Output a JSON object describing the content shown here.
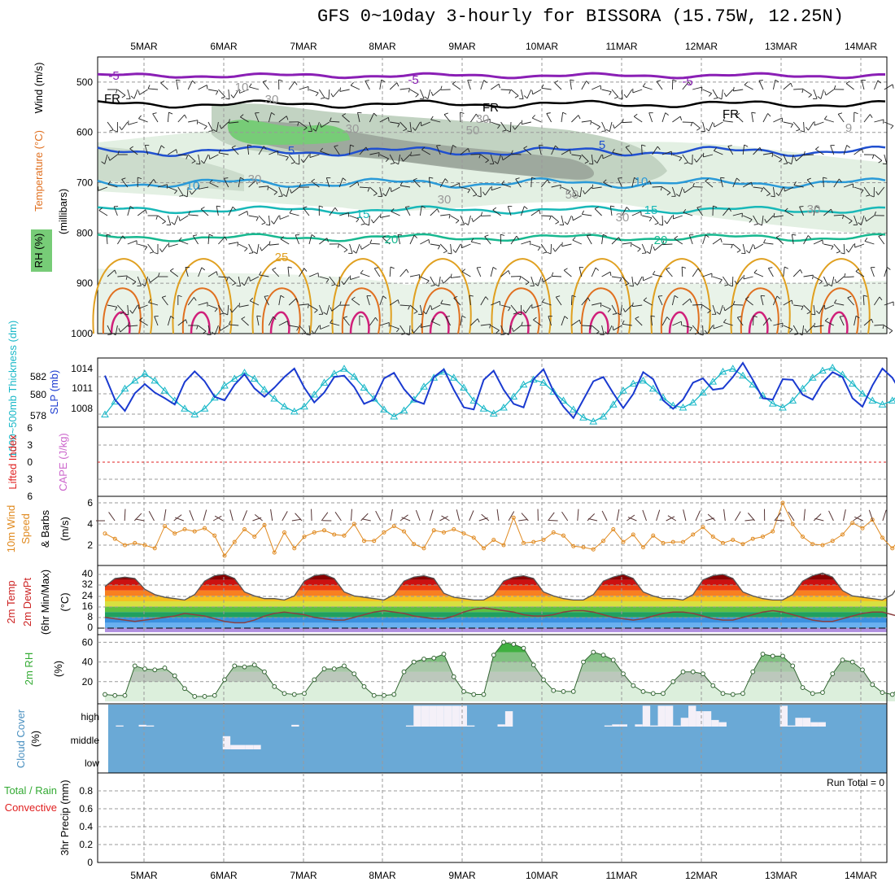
{
  "title": "GFS 0~10day 3-hourly for BISSORA (15.75W, 12.25N)",
  "run_total": "Run Total = 0",
  "dates": [
    "5MAR",
    "6MAR",
    "7MAR",
    "8MAR",
    "9MAR",
    "10MAR",
    "11MAR",
    "12MAR",
    "13MAR",
    "14MAR"
  ],
  "colors": {
    "frame": "#000000",
    "grid": "#999999",
    "rh_dark": "#9aa49a",
    "rh_mid": "#c2d3c2",
    "rh_light": "#e3f0e3",
    "rh_green": "#77cc77",
    "temp_m5": "#8a1fb5",
    "temp_fr": "#000000",
    "temp_5": "#2050d0",
    "temp_10": "#2a9ad8",
    "temp_15": "#18b8b8",
    "temp_20": "#18b890",
    "temp_25": "#e0a020",
    "temp_30": "#e07020",
    "temp_35": "#d0207a",
    "slp": "#1a3ad0",
    "thickness": "#1ab8c8",
    "wind10": "#e08a20",
    "rh2m": "#33aa33",
    "cloud_bg": "#6aa9d6",
    "cloud_bar": "#f4f0f8",
    "li": "#e02020",
    "cape": "#cc66cc"
  },
  "panels": {
    "upper": {
      "ylabels": [
        "Wind (m/s)",
        "Temperature (°C)",
        "RH (%)",
        "(millibars)"
      ],
      "yticks": [
        "500",
        "600",
        "700",
        "800",
        "900",
        "1000"
      ],
      "contour_labels": [
        "-5",
        "-5",
        "-5",
        "FR",
        "FR",
        "FR",
        "5",
        "5",
        "10",
        "10",
        "15",
        "15",
        "20",
        "20",
        "25",
        "10",
        "30",
        "30",
        "50",
        "30",
        "50",
        "30",
        "30",
        "30",
        "30",
        "9"
      ]
    },
    "thickness": {
      "ylabel_left": "1000~500mb Thickness (dm)",
      "ylabel_right": "SLP (mb)",
      "yticks_left": [
        "582",
        "580",
        "578"
      ],
      "yticks_right": [
        "1014",
        "1011",
        "1008"
      ]
    },
    "stability": {
      "ylabel_left": "Lifted Index",
      "ylabel_right": "CAPE (J/kg)",
      "yticks": [
        "6",
        "3",
        "0",
        "3",
        "6"
      ]
    },
    "wind10m": {
      "ylabel": [
        "10m Wind",
        "Speed",
        "& Barbs",
        "(m/s)"
      ],
      "yticks": [
        "6",
        "4",
        "2"
      ]
    },
    "temp2m": {
      "ylabel": [
        "2m Temp",
        "2m DewPt",
        "(6hr Min/Max)",
        "(°C)"
      ],
      "yticks": [
        "40",
        "32",
        "24",
        "16",
        "8",
        "0"
      ]
    },
    "rh2m": {
      "ylabel": [
        "2m RH",
        "(%)"
      ],
      "yticks": [
        "60",
        "40",
        "20"
      ]
    },
    "cloud": {
      "ylabel": [
        "Cloud Cover",
        "(%)"
      ],
      "levels": [
        "high",
        "middle",
        "low"
      ]
    },
    "precip": {
      "ylabel": [
        "3hr Precip (mm)"
      ],
      "ylabel_left": [
        "Total / Rain",
        "Convective"
      ],
      "yticks": [
        "0.8",
        "0.6",
        "0.4",
        "0.2",
        "0"
      ]
    }
  },
  "chart_data": [
    {
      "type": "line",
      "title": "1000~500mb Thickness (dm)",
      "ylim": [
        577,
        583
      ],
      "x_step_hours": 3,
      "series": [
        {
          "name": "Thickness",
          "values": [
            578.2,
            579.5,
            580.8,
            581.6,
            582.3,
            581.6,
            580.6,
            579.6,
            578.8,
            578.2,
            578.8,
            579.9,
            581.1,
            581.8,
            582.4,
            581.8,
            580.7,
            579.8,
            579.0,
            578.5,
            579.0,
            580.2,
            581.4,
            582.3,
            582.8,
            582.0,
            580.9,
            579.8,
            578.7,
            578.0,
            578.6,
            579.7,
            581.0,
            581.9,
            582.5,
            581.9,
            580.9,
            579.6,
            578.8,
            578.3,
            578.9,
            580.0,
            581.2,
            581.7,
            581.4,
            580.5,
            579.6,
            578.7,
            577.9,
            577.5,
            578.0,
            579.2,
            580.6,
            581.3,
            581.6,
            580.8,
            579.9,
            579.1,
            578.9,
            579.4,
            580.4,
            581.5,
            582.5,
            582.8,
            582.1,
            581.2,
            580.1,
            579.3,
            578.9,
            579.6,
            580.8,
            581.9,
            582.6,
            582.9,
            582.2,
            581.3,
            580.3,
            579.6,
            579.2,
            579.6,
            580.6,
            581.7,
            582.3,
            582.5,
            582.2,
            581.4,
            580.3,
            579.5
          ]
        }
      ]
    },
    {
      "type": "line",
      "title": "SLP (mb)",
      "ylim": [
        1006,
        1016
      ],
      "x_step_hours": 3,
      "series": [
        {
          "name": "SLP",
          "values": [
            1013.0,
            1009.6,
            1008.0,
            1010.5,
            1011.8,
            1010.6,
            1009.8,
            1008.9,
            1012.1,
            1013.6,
            1012.2,
            1010.0,
            1009.5,
            1011.7,
            1013.2,
            1011.2,
            1010.0,
            1011.3,
            1012.8,
            1014.0,
            1011.3,
            1009.2,
            1010.6,
            1012.8,
            1013.0,
            1011.4,
            1009.0,
            1009.6,
            1012.6,
            1013.4,
            1011.1,
            1009.5,
            1009.0,
            1012.8,
            1013.9,
            1011.0,
            1008.5,
            1008.2,
            1012.4,
            1013.7,
            1011.0,
            1009.0,
            1008.5,
            1012.5,
            1013.9,
            1010.8,
            1008.6,
            1007.0,
            1009.6,
            1012.2,
            1012.8,
            1010.5,
            1008.4,
            1010.4,
            1013.5,
            1012.5,
            1009.5,
            1008.3,
            1009.6,
            1012.0,
            1012.6,
            1011.0,
            1011.2,
            1012.8,
            1014.8,
            1012.4,
            1009.8,
            1009.6,
            1012.5,
            1012.4,
            1010.3,
            1009.6,
            1012.0,
            1013.5,
            1012.8,
            1009.8,
            1008.6,
            1011.6,
            1014.0,
            1012.7,
            1010.3,
            1009.0,
            1009.4,
            1011.9,
            1012.0,
            1010.2,
            1008.9,
            1009.4
          ]
        }
      ]
    },
    {
      "type": "line",
      "title": "10m Wind Speed (m/s)",
      "ylim": [
        0,
        6.5
      ],
      "x_step_hours": 3,
      "series": [
        {
          "name": "10m Wind Speed",
          "values": [
            3.1,
            2.6,
            2.0,
            2.2,
            2.0,
            1.7,
            3.8,
            3.1,
            3.5,
            3.3,
            3.6,
            2.9,
            1.0,
            2.3,
            3.5,
            2.8,
            3.9,
            1.3,
            3.2,
            1.7,
            2.8,
            3.2,
            3.4,
            3.0,
            2.9,
            4.0,
            2.4,
            2.4,
            3.2,
            3.8,
            3.3,
            2.1,
            1.7,
            3.4,
            3.2,
            3.5,
            3.1,
            2.7,
            1.7,
            2.5,
            2.0,
            4.6,
            2.2,
            2.3,
            2.5,
            3.2,
            2.9,
            1.9,
            1.8,
            1.6,
            2.4,
            3.5,
            2.3,
            3.0,
            1.8,
            2.9,
            2.2,
            2.3,
            2.3,
            3.0,
            3.7,
            2.8,
            2.2,
            2.5,
            2.1,
            2.6,
            2.8,
            3.3,
            6.0,
            4.0,
            2.8,
            2.1,
            2.0,
            2.4,
            3.0,
            4.1,
            3.6,
            4.4,
            2.7,
            1.7,
            2.9,
            3.2,
            3.7,
            5.7,
            3.9,
            4.1,
            3.5,
            0.7
          ]
        }
      ]
    },
    {
      "type": "area",
      "title": "2m Temp (°C)",
      "ylim": [
        -3,
        43
      ],
      "x_step_hours": 3,
      "series": [
        {
          "name": "2m Temp",
          "values": [
            31,
            37,
            38,
            37,
            29,
            25,
            23,
            22,
            21,
            25,
            35,
            39,
            40,
            37,
            27,
            24,
            22,
            22,
            21,
            24,
            35,
            39,
            40,
            37,
            27,
            24,
            23,
            22,
            21,
            25,
            35,
            38,
            39,
            37,
            26,
            23,
            22,
            21,
            21,
            25,
            35,
            38,
            39,
            37,
            27,
            24,
            22,
            21,
            21,
            25,
            35,
            38,
            40,
            37,
            27,
            24,
            22,
            22,
            21,
            25,
            36,
            39,
            40,
            37,
            27,
            24,
            22,
            21,
            21,
            25,
            35,
            39,
            41,
            38,
            28,
            24,
            23,
            22,
            21,
            25,
            36,
            39,
            40,
            37,
            28,
            24,
            22,
            21
          ]
        },
        {
          "name": "2m DewPt",
          "values": [
            8,
            7,
            6,
            5,
            6,
            7,
            8,
            9,
            11,
            10,
            9,
            7,
            5,
            4,
            4,
            6,
            9,
            11,
            12,
            11,
            10,
            8,
            7,
            6,
            6,
            8,
            10,
            12,
            13,
            12,
            11,
            9,
            8,
            7,
            7,
            9,
            12,
            14,
            15,
            14,
            13,
            12,
            10,
            9,
            9,
            10,
            12,
            13,
            13,
            12,
            10,
            8,
            7,
            6,
            7,
            9,
            11,
            12,
            12,
            11,
            9,
            7,
            6,
            6,
            8,
            10,
            12,
            13,
            12,
            10,
            8,
            6,
            5,
            5,
            7,
            9,
            11,
            12,
            12,
            10,
            8,
            6,
            5,
            5,
            7,
            10,
            12,
            13
          ]
        }
      ]
    },
    {
      "type": "area",
      "title": "2m RH (%)",
      "ylim": [
        0,
        65
      ],
      "x_step_hours": 3,
      "series": [
        {
          "name": "2m RH",
          "values": [
            7,
            6,
            6,
            36,
            33,
            32,
            34,
            26,
            13,
            5,
            5,
            6,
            22,
            36,
            35,
            37,
            30,
            15,
            8,
            7,
            8,
            22,
            33,
            33,
            36,
            28,
            15,
            6,
            6,
            7,
            30,
            40,
            43,
            44,
            48,
            25,
            10,
            7,
            7,
            47,
            60,
            58,
            54,
            37,
            22,
            11,
            10,
            10,
            40,
            50,
            47,
            42,
            28,
            16,
            10,
            8,
            8,
            20,
            30,
            30,
            28,
            16,
            8,
            7,
            8,
            30,
            48,
            46,
            46,
            36,
            14,
            8,
            9,
            28,
            42,
            40,
            32,
            17,
            9,
            7,
            17,
            30,
            50,
            55,
            52,
            50
          ]
        }
      ]
    },
    {
      "type": "bar",
      "title": "Cloud Cover (%)",
      "ylim": [
        0,
        100
      ],
      "x_step_hours": 3,
      "series": [
        {
          "name": "high",
          "values": [
            0,
            5,
            0,
            0,
            8,
            5,
            0,
            0,
            0,
            0,
            0,
            0,
            0,
            0,
            0,
            0,
            0,
            0,
            0,
            0,
            0,
            0,
            0,
            0,
            8,
            0,
            0,
            0,
            0,
            0,
            0,
            0,
            0,
            0,
            0,
            0,
            0,
            0,
            0,
            5,
            95,
            95,
            95,
            95,
            95,
            95,
            95,
            5,
            0,
            0,
            0,
            10,
            70,
            0,
            0,
            0,
            0,
            0,
            0,
            0,
            0,
            0,
            0,
            0,
            0,
            5,
            10,
            10,
            0,
            10,
            95,
            5,
            95,
            95,
            5,
            40,
            95,
            70,
            70,
            30,
            20,
            0,
            0,
            0,
            0,
            0,
            0,
            0,
            95,
            5,
            40,
            40,
            20,
            20,
            0,
            0,
            0,
            0,
            0,
            0,
            0,
            0
          ]
        },
        {
          "name": "middle",
          "values": [
            0,
            0,
            0,
            0,
            0,
            0,
            0,
            0,
            0,
            0,
            0,
            0,
            0,
            0,
            0,
            60,
            20,
            20,
            20,
            20,
            0,
            0,
            0,
            0,
            0,
            0,
            0,
            0,
            0,
            0,
            0,
            0,
            0,
            0,
            0,
            0,
            0,
            0,
            0,
            0,
            0,
            0,
            0,
            0,
            0,
            0,
            0,
            0,
            0,
            0,
            0,
            0,
            0,
            0,
            0,
            0,
            0,
            0,
            0,
            0,
            0,
            0,
            0,
            0,
            0,
            0,
            0,
            0,
            0,
            0,
            0,
            0,
            0,
            0,
            0,
            0,
            0,
            0,
            0,
            0,
            0,
            0,
            0,
            0,
            0,
            0,
            0,
            0,
            0,
            0,
            0,
            0,
            0,
            0,
            0,
            0,
            0,
            0,
            0,
            0,
            0,
            0
          ]
        },
        {
          "name": "low",
          "values": [
            0,
            0,
            0,
            0,
            0,
            0,
            0,
            0,
            0,
            0,
            0,
            0,
            0,
            0,
            0,
            0,
            0,
            0,
            0,
            0,
            0,
            0,
            0,
            0,
            0,
            0,
            0,
            0,
            0,
            0,
            0,
            0,
            0,
            0,
            0,
            0,
            0,
            0,
            0,
            0,
            0,
            0,
            0,
            0,
            0,
            0,
            0,
            0,
            0,
            0,
            0,
            0,
            0,
            0,
            0,
            0,
            0,
            0,
            0,
            0,
            0,
            0,
            0,
            0,
            0,
            0,
            0,
            0,
            0,
            0,
            0,
            0,
            0,
            0,
            0,
            0,
            0,
            0,
            0,
            0,
            0,
            0,
            0,
            0,
            0,
            0,
            0,
            0,
            0,
            0,
            0,
            0,
            0,
            0,
            0,
            0,
            0,
            0,
            0,
            0,
            0,
            0
          ]
        }
      ]
    },
    {
      "type": "bar",
      "title": "3hr Precip (mm)",
      "ylim": [
        0,
        0.9
      ],
      "x_step_hours": 3,
      "series": [
        {
          "name": "Total / Rain",
          "values": [
            0,
            0,
            0,
            0,
            0,
            0,
            0,
            0,
            0,
            0,
            0,
            0,
            0,
            0,
            0,
            0,
            0,
            0,
            0,
            0,
            0,
            0,
            0,
            0,
            0,
            0,
            0,
            0,
            0,
            0,
            0,
            0,
            0,
            0,
            0,
            0,
            0,
            0,
            0,
            0,
            0,
            0,
            0,
            0,
            0,
            0,
            0,
            0,
            0,
            0,
            0,
            0,
            0,
            0,
            0,
            0,
            0,
            0,
            0,
            0,
            0,
            0,
            0,
            0,
            0,
            0,
            0,
            0,
            0,
            0,
            0,
            0,
            0,
            0,
            0,
            0,
            0,
            0,
            0,
            0,
            0,
            0,
            0,
            0,
            0,
            0,
            0,
            0
          ]
        }
      ]
    }
  ]
}
